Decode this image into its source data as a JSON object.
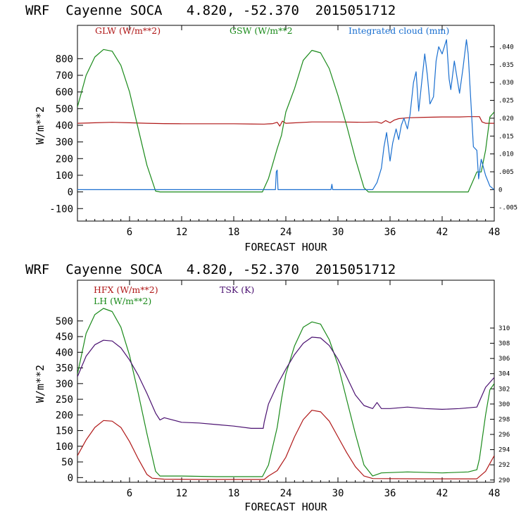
{
  "panels": [
    {
      "title": "WRF  Cayenne SOCA   4.820, -52.370  2015051712",
      "chart_data": {
        "type": "line",
        "xlabel": "FORECAST HOUR",
        "ylabel": "W/m**2",
        "xlim": [
          0,
          48
        ],
        "ylim": [
          -175,
          1000
        ],
        "x_ticks": [
          "6",
          "12",
          "18",
          "24",
          "30",
          "36",
          "42",
          "48"
        ],
        "y_ticks": [
          "-100",
          "0",
          "100",
          "200",
          "300",
          "400",
          "500",
          "600",
          "700",
          "800"
        ],
        "y2_label": "",
        "y2lim": [
          -0.0088,
          0.046
        ],
        "y2_ticks": [
          "-.005",
          "0",
          ".005",
          ".010",
          ".015",
          ".020",
          ".025",
          ".030",
          ".035",
          ".040"
        ],
        "series": [
          {
            "name": "GLW (W/m**2)",
            "axis": "left",
            "color": "#b01818",
            "points": [
              [
                0,
                412
              ],
              [
                2,
                415
              ],
              [
                4,
                418
              ],
              [
                6,
                415
              ],
              [
                8,
                412
              ],
              [
                10,
                410
              ],
              [
                12,
                409
              ],
              [
                14,
                409
              ],
              [
                16,
                409
              ],
              [
                18,
                409
              ],
              [
                20,
                408
              ],
              [
                21.5,
                407
              ],
              [
                22.5,
                410
              ],
              [
                23,
                418
              ],
              [
                23.3,
                395
              ],
              [
                23.6,
                425
              ],
              [
                24,
                412
              ],
              [
                27,
                420
              ],
              [
                30,
                420
              ],
              [
                33,
                418
              ],
              [
                34.5,
                420
              ],
              [
                35,
                412
              ],
              [
                35.5,
                428
              ],
              [
                36,
                415
              ],
              [
                36.5,
                432
              ],
              [
                37,
                440
              ],
              [
                38,
                445
              ],
              [
                40,
                448
              ],
              [
                42,
                450
              ],
              [
                44,
                450
              ],
              [
                45,
                452
              ],
              [
                46.3,
                452
              ],
              [
                46.6,
                420
              ],
              [
                47,
                412
              ],
              [
                48,
                412
              ]
            ]
          },
          {
            "name": "GSW (W/m**2",
            "axis": "left",
            "color": "#1a8a1a",
            "points": [
              [
                0,
                510
              ],
              [
                1,
                700
              ],
              [
                2,
                810
              ],
              [
                3,
                855
              ],
              [
                4,
                845
              ],
              [
                5,
                760
              ],
              [
                6,
                600
              ],
              [
                7,
                380
              ],
              [
                8,
                160
              ],
              [
                9,
                5
              ],
              [
                9.5,
                0
              ],
              [
                21.3,
                0
              ],
              [
                22,
                80
              ],
              [
                22.5,
                170
              ],
              [
                23,
                260
              ],
              [
                23.5,
                340
              ],
              [
                24,
                480
              ],
              [
                25,
                620
              ],
              [
                26,
                790
              ],
              [
                27,
                850
              ],
              [
                28,
                835
              ],
              [
                29,
                740
              ],
              [
                30,
                580
              ],
              [
                31,
                400
              ],
              [
                32,
                200
              ],
              [
                33,
                25
              ],
              [
                33.5,
                0
              ],
              [
                45,
                0
              ],
              [
                45.5,
                60
              ],
              [
                46,
                120
              ],
              [
                46.5,
                120
              ],
              [
                47,
                250
              ],
              [
                47.5,
                450
              ],
              [
                48,
                480
              ]
            ]
          },
          {
            "name": "Integrated cloud (mm)",
            "axis": "right",
            "color": "#1a6fd0",
            "points": [
              [
                0,
                0
              ],
              [
                22.8,
                0
              ],
              [
                22.9,
                0.005
              ],
              [
                23,
                0.0055
              ],
              [
                23.1,
                0
              ],
              [
                29.2,
                0
              ],
              [
                29.3,
                0.0015
              ],
              [
                29.4,
                0
              ],
              [
                34,
                0
              ],
              [
                34.5,
                0.002
              ],
              [
                35,
                0.006
              ],
              [
                35.3,
                0.012
              ],
              [
                35.6,
                0.016
              ],
              [
                36,
                0.008
              ],
              [
                36.3,
                0.013
              ],
              [
                36.7,
                0.017
              ],
              [
                37,
                0.014
              ],
              [
                37.3,
                0.018
              ],
              [
                37.6,
                0.02
              ],
              [
                38,
                0.017
              ],
              [
                38.3,
                0.021
              ],
              [
                38.7,
                0.03
              ],
              [
                39,
                0.033
              ],
              [
                39.3,
                0.022
              ],
              [
                39.6,
                0.029
              ],
              [
                40,
                0.038
              ],
              [
                40.3,
                0.032
              ],
              [
                40.6,
                0.024
              ],
              [
                41,
                0.026
              ],
              [
                41.3,
                0.036
              ],
              [
                41.6,
                0.04
              ],
              [
                42,
                0.038
              ],
              [
                42.5,
                0.042
              ],
              [
                42.8,
                0.031
              ],
              [
                43,
                0.028
              ],
              [
                43.4,
                0.036
              ],
              [
                43.8,
                0.03
              ],
              [
                44,
                0.027
              ],
              [
                44.4,
                0.034
              ],
              [
                44.8,
                0.042
              ],
              [
                45,
                0.038
              ],
              [
                45.3,
                0.025
              ],
              [
                45.6,
                0.012
              ],
              [
                46,
                0.011
              ],
              [
                46.2,
                0.003
              ],
              [
                46.5,
                0.0085
              ],
              [
                47,
                0.004
              ],
              [
                47.5,
                0.001
              ],
              [
                48,
                0
              ]
            ]
          }
        ]
      }
    },
    {
      "title": "WRF  Cayenne SOCA   4.820, -52.370  2015051712",
      "chart_data": {
        "type": "line",
        "xlabel": "FORECAST HOUR",
        "ylabel": "W/m**2",
        "xlim": [
          0,
          48
        ],
        "ylim": [
          -15,
          630
        ],
        "x_ticks": [
          "6",
          "12",
          "18",
          "24",
          "30",
          "36",
          "42",
          "48"
        ],
        "y_ticks": [
          "0",
          "50",
          "100",
          "150",
          "200",
          "250",
          "300",
          "350",
          "400",
          "450",
          "500"
        ],
        "y2_label": "",
        "y2lim": [
          289.7,
          316.3
        ],
        "y2_ticks": [
          "290",
          "292",
          "294",
          "296",
          "298",
          "300",
          "302",
          "304",
          "306",
          "308",
          "310"
        ],
        "series": [
          {
            "name": "HFX (W/m**2)",
            "axis": "left",
            "color": "#b01818",
            "points": [
              [
                0,
                70
              ],
              [
                1,
                120
              ],
              [
                2,
                160
              ],
              [
                3,
                182
              ],
              [
                4,
                180
              ],
              [
                5,
                160
              ],
              [
                6,
                115
              ],
              [
                7,
                60
              ],
              [
                8,
                10
              ],
              [
                8.6,
                -2
              ],
              [
                10,
                -5
              ],
              [
                14,
                -6
              ],
              [
                18,
                -6
              ],
              [
                21.5,
                -6
              ],
              [
                22,
                5
              ],
              [
                23,
                22
              ],
              [
                24,
                65
              ],
              [
                25,
                130
              ],
              [
                26,
                185
              ],
              [
                27,
                215
              ],
              [
                28,
                210
              ],
              [
                29,
                180
              ],
              [
                30,
                130
              ],
              [
                31,
                80
              ],
              [
                32,
                35
              ],
              [
                33,
                5
              ],
              [
                34,
                -3
              ],
              [
                40,
                -4
              ],
              [
                46,
                -4
              ],
              [
                47,
                20
              ],
              [
                47.5,
                45
              ],
              [
                48,
                70
              ]
            ]
          },
          {
            "name": "LH  (W/m**2)",
            "axis": "left",
            "color": "#1a8a1a",
            "points": [
              [
                0,
                330
              ],
              [
                1,
                460
              ],
              [
                2,
                520
              ],
              [
                3,
                540
              ],
              [
                4,
                530
              ],
              [
                5,
                480
              ],
              [
                6,
                390
              ],
              [
                7,
                270
              ],
              [
                8,
                140
              ],
              [
                9,
                20
              ],
              [
                9.5,
                5
              ],
              [
                12,
                5
              ],
              [
                16,
                3
              ],
              [
                21.3,
                3
              ],
              [
                22,
                40
              ],
              [
                22.5,
                100
              ],
              [
                23,
                160
              ],
              [
                23.5,
                250
              ],
              [
                24,
                330
              ],
              [
                25,
                420
              ],
              [
                26,
                480
              ],
              [
                27,
                497
              ],
              [
                28,
                490
              ],
              [
                29,
                440
              ],
              [
                30,
                360
              ],
              [
                31,
                250
              ],
              [
                32,
                140
              ],
              [
                33,
                40
              ],
              [
                34,
                5
              ],
              [
                35,
                15
              ],
              [
                38,
                18
              ],
              [
                42,
                15
              ],
              [
                45,
                18
              ],
              [
                46,
                25
              ],
              [
                46.3,
                60
              ],
              [
                47,
                200
              ],
              [
                47.5,
                280
              ],
              [
                48,
                300
              ]
            ]
          },
          {
            "name": "TSK (K)",
            "axis": "right",
            "color": "#4a1070",
            "points": [
              [
                0,
                303.6
              ],
              [
                1,
                306.3
              ],
              [
                2,
                307.8
              ],
              [
                3,
                308.4
              ],
              [
                4,
                308.3
              ],
              [
                5,
                307.4
              ],
              [
                6,
                305.8
              ],
              [
                7,
                303.8
              ],
              [
                8,
                301.4
              ],
              [
                9,
                298.8
              ],
              [
                9.5,
                297.9
              ],
              [
                10,
                298.2
              ],
              [
                12,
                297.6
              ],
              [
                14,
                297.5
              ],
              [
                16,
                297.3
              ],
              [
                18,
                297.1
              ],
              [
                20,
                296.8
              ],
              [
                21.4,
                296.8
              ],
              [
                21.5,
                297.6
              ],
              [
                22,
                300
              ],
              [
                23,
                302.5
              ],
              [
                24,
                304.6
              ],
              [
                25,
                306.5
              ],
              [
                26,
                308
              ],
              [
                27,
                308.8
              ],
              [
                28,
                308.7
              ],
              [
                29,
                307.7
              ],
              [
                30,
                305.9
              ],
              [
                31,
                303.6
              ],
              [
                32,
                301.2
              ],
              [
                33,
                299.8
              ],
              [
                34,
                299.4
              ],
              [
                34.5,
                300.2
              ],
              [
                35,
                299.4
              ],
              [
                36,
                299.4
              ],
              [
                38,
                299.6
              ],
              [
                40,
                299.4
              ],
              [
                42,
                299.3
              ],
              [
                44,
                299.4
              ],
              [
                46,
                299.6
              ],
              [
                47,
                302.2
              ],
              [
                48,
                303.5
              ]
            ]
          }
        ]
      }
    }
  ]
}
